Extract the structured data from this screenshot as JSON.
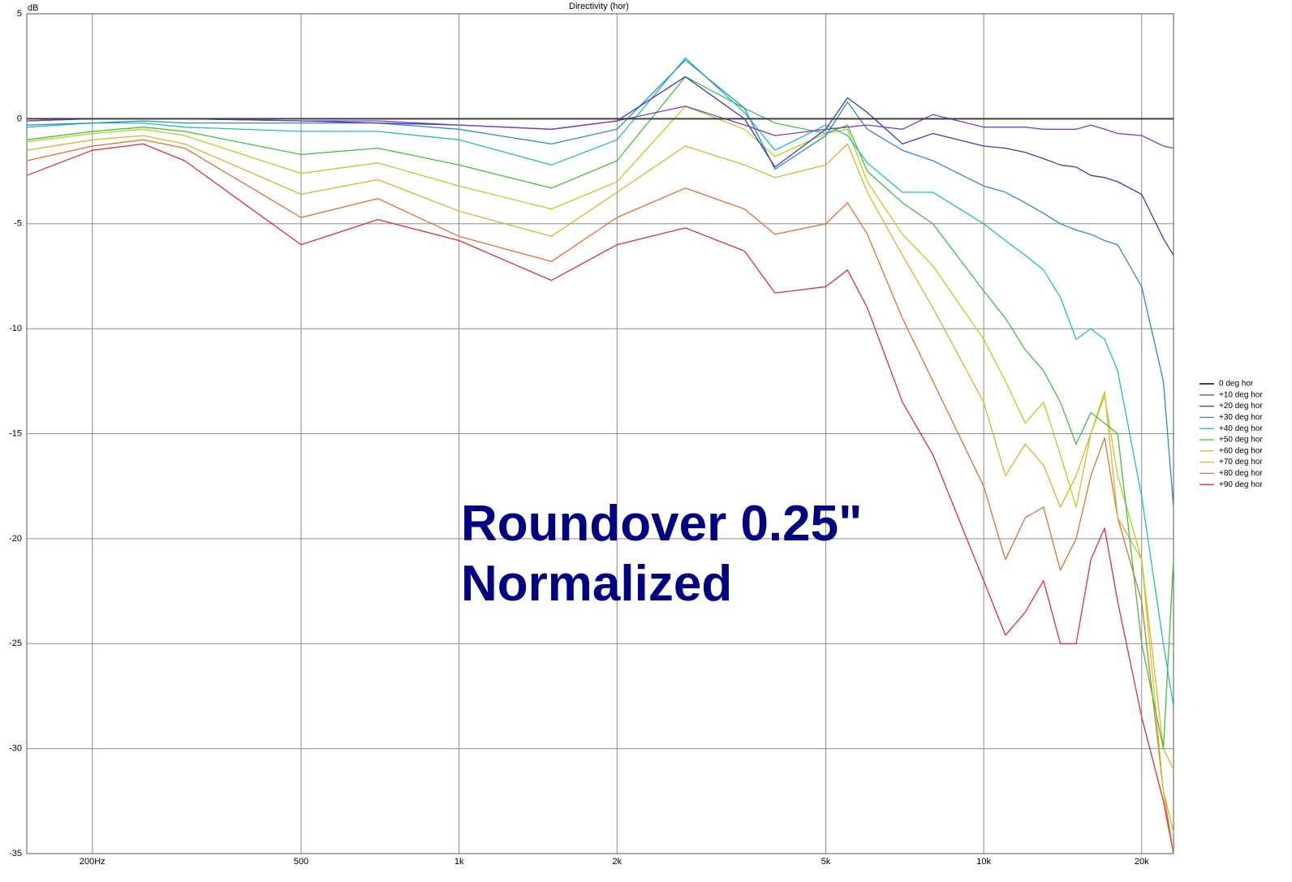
{
  "chart_data": {
    "type": "line",
    "title": "Directivity (hor)",
    "y_label": "dB",
    "xscale": "log",
    "grid": true,
    "legend": "right",
    "xlim": [
      150,
      23000
    ],
    "ylim": [
      -35,
      5
    ],
    "xticks": [
      {
        "value": 200,
        "label": "200Hz"
      },
      500,
      {
        "value": 1000,
        "label": "1k"
      },
      {
        "value": 2000,
        "label": "2k"
      },
      {
        "value": 5000,
        "label": "5k"
      },
      {
        "value": 10000,
        "label": "10k"
      },
      {
        "value": 20000,
        "label": "20k"
      }
    ],
    "yticks": [
      5,
      0,
      -5,
      -10,
      -15,
      -20,
      -25,
      -30,
      -35
    ],
    "annotations": [
      "Roundover 0.25\"",
      "Normalized"
    ],
    "x": [
      150,
      200,
      250,
      300,
      500,
      700,
      1000,
      1500,
      2000,
      2700,
      3500,
      4000,
      5000,
      5500,
      6000,
      7000,
      8000,
      10000,
      11000,
      12000,
      13000,
      14000,
      15000,
      16000,
      17000,
      18000,
      20000,
      22000,
      23000
    ],
    "series": [
      {
        "name": "0 deg hor",
        "color": "#404040",
        "values": [
          0,
          0,
          0,
          0,
          0,
          0,
          0,
          0,
          0,
          0,
          0,
          0,
          0,
          0,
          0,
          0,
          0,
          0,
          0,
          0,
          0,
          0,
          0,
          0,
          0,
          0,
          0,
          0,
          0
        ]
      },
      {
        "name": "+10 deg hor",
        "color": "#7a3cc8",
        "values": [
          -0.1,
          0,
          0,
          0,
          -0.1,
          -0.1,
          -0.3,
          -0.5,
          -0.1,
          0.6,
          -0.3,
          -0.8,
          -0.5,
          -0.4,
          -0.3,
          -0.5,
          0.2,
          -0.4,
          -0.4,
          -0.4,
          -0.5,
          -0.5,
          -0.5,
          -0.3,
          -0.5,
          -0.7,
          -0.8,
          -1.3,
          -1.4
        ]
      },
      {
        "name": "+20 deg hor",
        "color": "#3a3cb8",
        "values": [
          -0.1,
          0,
          0,
          0,
          -0.1,
          -0.2,
          -0.3,
          -0.5,
          -0.1,
          2.0,
          0,
          -2.3,
          -0.5,
          1.0,
          0.3,
          -1.2,
          -0.7,
          -1.3,
          -1.4,
          -1.6,
          -1.9,
          -2.2,
          -2.3,
          -2.7,
          -2.8,
          -3.0,
          -3.6,
          -5.7,
          -6.5
        ]
      },
      {
        "name": "+30 deg hor",
        "color": "#2a8ad0",
        "values": [
          -0.3,
          -0.2,
          -0.1,
          -0.2,
          -0.2,
          -0.2,
          -0.5,
          -1.2,
          -0.5,
          2.8,
          0.5,
          -2.4,
          -0.8,
          0.8,
          -0.5,
          -1.5,
          -2.0,
          -3.2,
          -3.5,
          -4.0,
          -4.5,
          -5.0,
          -5.3,
          -5.5,
          -5.8,
          -6.0,
          -8.0,
          -12.5,
          -18.5
        ]
      },
      {
        "name": "+40 deg hor",
        "color": "#20c0b0",
        "values": [
          -0.4,
          -0.2,
          -0.2,
          -0.4,
          -0.6,
          -0.6,
          -1.0,
          -2.2,
          -1.0,
          2.9,
          0.3,
          -1.5,
          -0.3,
          -0.8,
          -2.1,
          -3.5,
          -3.5,
          -5.0,
          -5.8,
          -6.5,
          -7.2,
          -8.5,
          -10.5,
          -10,
          -10.5,
          -12,
          -18,
          -25,
          -28
        ]
      },
      {
        "name": "+50 deg hor",
        "color": "#40c040",
        "values": [
          -1.0,
          -0.6,
          -0.4,
          -0.6,
          -1.7,
          -1.4,
          -2.2,
          -3.3,
          -2.0,
          2.0,
          0.5,
          -0.2,
          -0.7,
          -0.3,
          -2.5,
          -4.0,
          -5.0,
          -8.2,
          -9.5,
          -11.0,
          -12.0,
          -13.5,
          -15.5,
          -14,
          -14.5,
          -15,
          -25,
          -30,
          -21
        ]
      },
      {
        "name": "+60 deg hor",
        "color": "#b8d020",
        "values": [
          -1.1,
          -0.7,
          -0.5,
          -0.8,
          -2.6,
          -2.1,
          -3.2,
          -4.3,
          -3.0,
          0.6,
          -0.5,
          -1.8,
          -0.7,
          -0.5,
          -3.0,
          -5.5,
          -7.0,
          -10.5,
          -12.5,
          -14.5,
          -13.5,
          -16,
          -18.5,
          -15,
          -13.2,
          -17,
          -21,
          -32,
          -34
        ]
      },
      {
        "name": "+70 deg hor",
        "color": "#e0b030",
        "values": [
          -1.5,
          -1.0,
          -0.8,
          -1.2,
          -3.6,
          -2.9,
          -4.4,
          -5.6,
          -3.5,
          -1.3,
          -2.2,
          -2.8,
          -2.2,
          -1.2,
          -3.5,
          -6.5,
          -9.0,
          -13.5,
          -17,
          -15.5,
          -16.5,
          -18.5,
          -17,
          -15,
          -13.0,
          -19,
          -21,
          -30,
          -31
        ]
      },
      {
        "name": "+80 deg hor",
        "color": "#e07030",
        "values": [
          -2.0,
          -1.3,
          -1.0,
          -1.4,
          -4.7,
          -3.8,
          -5.6,
          -6.8,
          -4.7,
          -3.3,
          -4.3,
          -5.5,
          -5.0,
          -4.0,
          -5.5,
          -9.5,
          -12.5,
          -17.5,
          -21,
          -19,
          -18.5,
          -21.5,
          -20,
          -17,
          -15.2,
          -19,
          -23,
          -32,
          -35
        ]
      },
      {
        "name": "+90 deg hor",
        "color": "#e03030",
        "values": [
          -2.7,
          -1.5,
          -1.2,
          -2.0,
          -6.0,
          -4.8,
          -5.8,
          -7.7,
          -6.0,
          -5.2,
          -6.3,
          -8.3,
          -8.0,
          -7.2,
          -9.0,
          -13.5,
          -16,
          -22,
          -24.6,
          -23.5,
          -22,
          -25,
          -25,
          -21,
          -19.5,
          -23,
          -28.5,
          -32.5,
          -35
        ]
      }
    ]
  }
}
